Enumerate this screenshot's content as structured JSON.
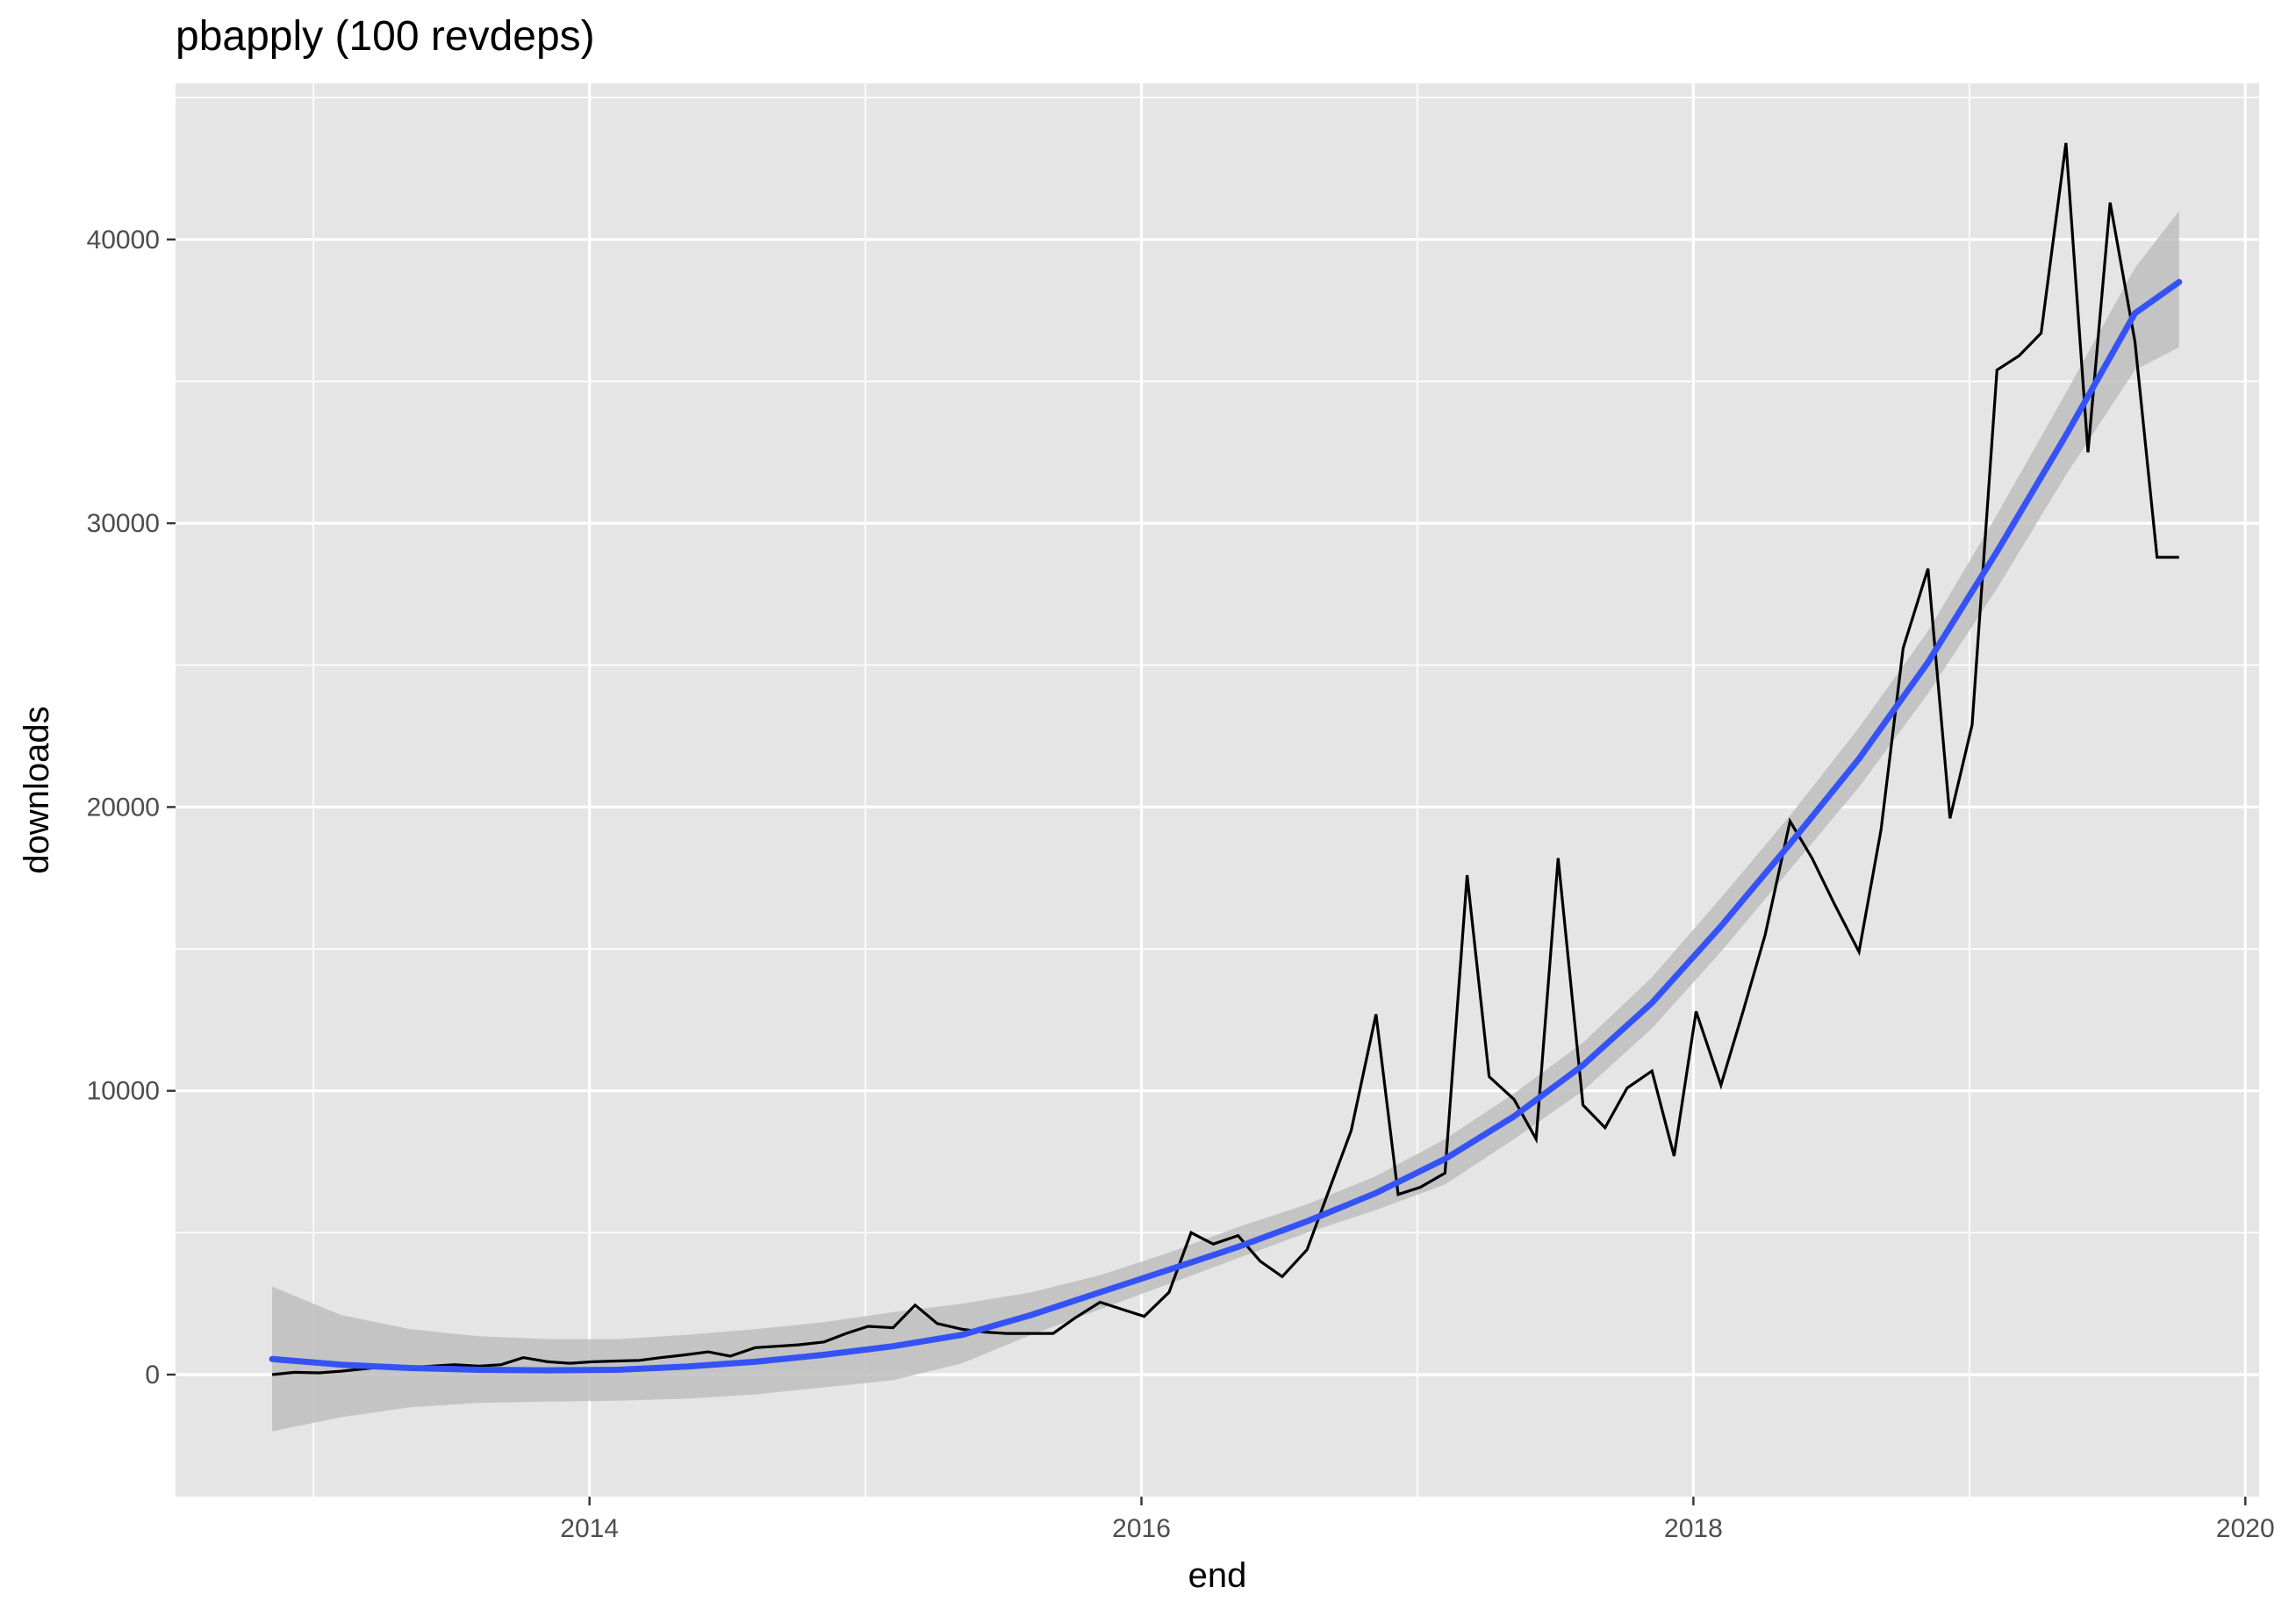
{
  "chart_data": {
    "type": "line",
    "title": "pbapply (100 revdeps)",
    "xlabel": "end",
    "ylabel": "downloads",
    "xlim": [
      2012.5,
      2020.05
    ],
    "ylim": [
      -4300,
      45500
    ],
    "x_ticks": [
      2014,
      2016,
      2018,
      2020
    ],
    "x_tick_labels": [
      "2014",
      "2016",
      "2018",
      "2020"
    ],
    "y_ticks": [
      0,
      10000,
      20000,
      30000,
      40000
    ],
    "y_tick_labels": [
      "0",
      "10000",
      "20000",
      "30000",
      "40000"
    ],
    "grid": true,
    "colors": {
      "panel": "#e5e5e5",
      "grid": "#ffffff",
      "line": "#000000",
      "smooth": "#3553f5",
      "ribbon": "#bebebe"
    },
    "series": [
      {
        "name": "downloads",
        "x": [
          2012.85,
          2012.93,
          2013.02,
          2013.1,
          2013.18,
          2013.26,
          2013.35,
          2013.43,
          2013.51,
          2013.6,
          2013.68,
          2013.76,
          2013.85,
          2013.93,
          2014.01,
          2014.1,
          2014.18,
          2014.26,
          2014.35,
          2014.43,
          2014.51,
          2014.6,
          2014.68,
          2014.76,
          2014.85,
          2014.93,
          2015.01,
          2015.1,
          2015.18,
          2015.26,
          2015.35,
          2015.43,
          2015.51,
          2015.6,
          2015.68,
          2015.76,
          2015.85,
          2015.93,
          2016.01,
          2016.1,
          2016.18,
          2016.26,
          2016.35,
          2016.43,
          2016.51,
          2016.6,
          2016.68,
          2016.76,
          2016.85,
          2016.93,
          2017.01,
          2017.1,
          2017.18,
          2017.26,
          2017.35,
          2017.43,
          2017.51,
          2017.6,
          2017.68,
          2017.76,
          2017.85,
          2017.93,
          2018.01,
          2018.1,
          2018.18,
          2018.26,
          2018.35,
          2018.43,
          2018.51,
          2018.6,
          2018.68,
          2018.76,
          2018.85,
          2018.93,
          2019.01,
          2019.1,
          2019.18,
          2019.26,
          2019.35,
          2019.43,
          2019.51,
          2019.6,
          2019.68,
          2019.76
        ],
        "values": [
          0,
          80,
          60,
          120,
          200,
          280,
          250,
          300,
          350,
          300,
          350,
          600,
          450,
          400,
          450,
          480,
          500,
          600,
          700,
          800,
          650,
          950,
          1000,
          1050,
          1150,
          1450,
          1700,
          1650,
          2450,
          1800,
          1600,
          1500,
          1450,
          1450,
          1450,
          2000,
          2550,
          2300,
          2050,
          2900,
          5000,
          4600,
          4900,
          4000,
          3450,
          4400,
          6500,
          8600,
          12700,
          6350,
          6600,
          7100,
          17600,
          10500,
          9700,
          8300,
          18200,
          9500,
          8700,
          10100,
          10700,
          7700,
          12800,
          10200,
          12800,
          15500,
          19500,
          18200,
          16600,
          14900,
          19200,
          25600,
          28400,
          19600,
          22900,
          35400,
          35900,
          36700,
          43400,
          32500,
          41300,
          36400,
          28800,
          28800
        ]
      },
      {
        "name": "smooth",
        "x": [
          2012.85,
          2013.1,
          2013.35,
          2013.6,
          2013.85,
          2014.1,
          2014.35,
          2014.6,
          2014.85,
          2015.1,
          2015.35,
          2015.6,
          2015.85,
          2016.1,
          2016.35,
          2016.6,
          2016.85,
          2017.1,
          2017.35,
          2017.6,
          2017.85,
          2018.1,
          2018.35,
          2018.6,
          2018.85,
          2019.1,
          2019.35,
          2019.6,
          2019.76
        ],
        "values": [
          550,
          350,
          230,
          170,
          150,
          170,
          280,
          450,
          700,
          1000,
          1400,
          2100,
          2900,
          3700,
          4500,
          5400,
          6400,
          7600,
          9100,
          10900,
          13100,
          15800,
          18700,
          21700,
          25100,
          29000,
          33100,
          37400,
          38500
        ],
        "lower": [
          -2000,
          -1500,
          -1150,
          -1000,
          -950,
          -920,
          -850,
          -700,
          -450,
          -200,
          400,
          1400,
          2300,
          3200,
          4100,
          5000,
          5800,
          6700,
          8300,
          10000,
          12200,
          14900,
          17800,
          20700,
          24000,
          27700,
          31700,
          35400,
          36200
        ],
        "upper": [
          3100,
          2100,
          1600,
          1350,
          1250,
          1250,
          1400,
          1600,
          1850,
          2200,
          2500,
          2900,
          3500,
          4300,
          5200,
          6000,
          7000,
          8300,
          9900,
          11700,
          14000,
          16800,
          19700,
          22800,
          26200,
          30300,
          34600,
          39000,
          41000
        ]
      }
    ]
  }
}
